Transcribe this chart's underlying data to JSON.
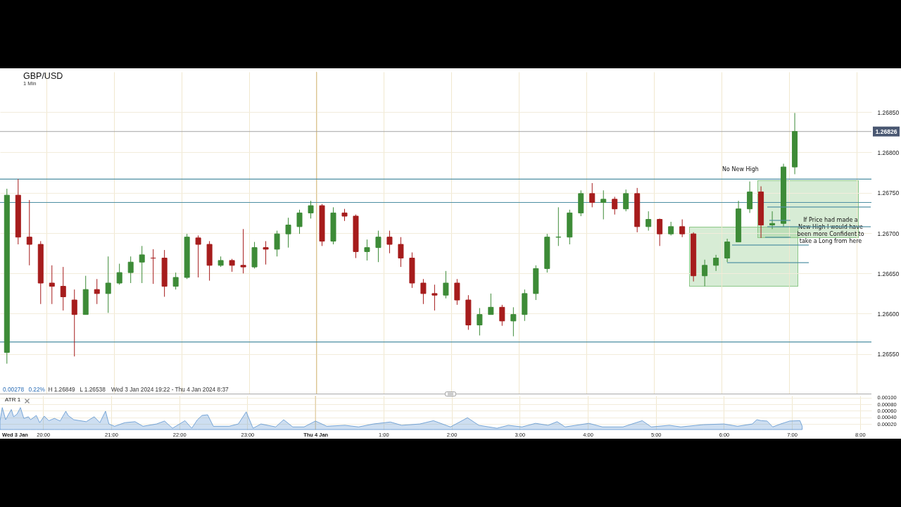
{
  "chart_data": [
    {
      "type": "candlestick",
      "title": "GBP/USD",
      "subtitle": "1 Min",
      "x": [
        "2024-01-03T19:25",
        "2024-01-03T19:35",
        "2024-01-03T19:45",
        "2024-01-03T19:55",
        "2024-01-03T20:05",
        "2024-01-03T20:15",
        "2024-01-03T20:25",
        "2024-01-03T20:35",
        "2024-01-03T20:45",
        "2024-01-03T20:55",
        "2024-01-03T21:05",
        "2024-01-03T21:15",
        "2024-01-03T21:25",
        "2024-01-03T21:35",
        "2024-01-03T21:45",
        "2024-01-03T21:55",
        "2024-01-03T22:05",
        "2024-01-03T22:15",
        "2024-01-03T22:25",
        "2024-01-03T22:35",
        "2024-01-03T22:45",
        "2024-01-03T22:55",
        "2024-01-03T23:05",
        "2024-01-03T23:15",
        "2024-01-03T23:25",
        "2024-01-03T23:35",
        "2024-01-03T23:45",
        "2024-01-03T23:55",
        "2024-01-04T00:05",
        "2024-01-04T00:15",
        "2024-01-04T00:25",
        "2024-01-04T00:35",
        "2024-01-04T00:45",
        "2024-01-04T00:55",
        "2024-01-04T01:05",
        "2024-01-04T01:15",
        "2024-01-04T01:25",
        "2024-01-04T01:35",
        "2024-01-04T01:45",
        "2024-01-04T01:55",
        "2024-01-04T02:05",
        "2024-01-04T02:15",
        "2024-01-04T02:25",
        "2024-01-04T02:35",
        "2024-01-04T02:45",
        "2024-01-04T02:55",
        "2024-01-04T03:05",
        "2024-01-04T03:15",
        "2024-01-04T03:25",
        "2024-01-04T03:35",
        "2024-01-04T03:45",
        "2024-01-04T03:55",
        "2024-01-04T04:05",
        "2024-01-04T04:15",
        "2024-01-04T04:25",
        "2024-01-04T04:35",
        "2024-01-04T04:45",
        "2024-01-04T04:55",
        "2024-01-04T05:05",
        "2024-01-04T05:15",
        "2024-01-04T05:25",
        "2024-01-04T05:35",
        "2024-01-04T05:45",
        "2024-01-04T05:55",
        "2024-01-04T06:05",
        "2024-01-04T06:15",
        "2024-01-04T06:25",
        "2024-01-04T06:35",
        "2024-01-04T06:45",
        "2024-01-04T06:55",
        "2024-01-04T07:05"
      ],
      "ohlc": [
        [
          1.26552,
          1.26755,
          1.26538,
          1.26747
        ],
        [
          1.26747,
          1.26767,
          1.26686,
          1.26695
        ],
        [
          1.26695,
          1.26741,
          1.2666,
          1.26686
        ],
        [
          1.26686,
          1.2669,
          1.26612,
          1.26638
        ],
        [
          1.26638,
          1.2666,
          1.26612,
          1.26634
        ],
        [
          1.26634,
          1.26658,
          1.26604,
          1.26621
        ],
        [
          1.26617,
          1.2663,
          1.26547,
          1.26599
        ],
        [
          1.26599,
          1.26647,
          1.26599,
          1.2663
        ],
        [
          1.2663,
          1.26643,
          1.26612,
          1.26625
        ],
        [
          1.26625,
          1.26671,
          1.26601,
          1.26638
        ],
        [
          1.26638,
          1.26662,
          1.26636,
          1.26651
        ],
        [
          1.26651,
          1.26671,
          1.26638,
          1.26664
        ],
        [
          1.26664,
          1.26684,
          1.26638,
          1.26673
        ],
        [
          1.26669,
          1.2668,
          1.26637,
          1.26669
        ],
        [
          1.26669,
          1.26679,
          1.26621,
          1.26634
        ],
        [
          1.26634,
          1.26651,
          1.2663,
          1.26645
        ],
        [
          1.26645,
          1.26699,
          1.26643,
          1.26695
        ],
        [
          1.26694,
          1.26697,
          1.26645,
          1.26686
        ],
        [
          1.26686,
          1.2669,
          1.26641,
          1.2666
        ],
        [
          1.2666,
          1.26671,
          1.26658,
          1.26666
        ],
        [
          1.26666,
          1.26668,
          1.26652,
          1.2666
        ],
        [
          1.2666,
          1.26705,
          1.2665,
          1.26658
        ],
        [
          1.26658,
          1.26689,
          1.26656,
          1.26682
        ],
        [
          1.26682,
          1.2669,
          1.26661,
          1.2668
        ],
        [
          1.2668,
          1.26703,
          1.26671,
          1.26699
        ],
        [
          1.26699,
          1.26719,
          1.26682,
          1.2671
        ],
        [
          1.26708,
          1.26729,
          1.26699,
          1.26725
        ],
        [
          1.26725,
          1.2674,
          1.26718,
          1.26734
        ],
        [
          1.26734,
          1.26736,
          1.26684,
          1.2669
        ],
        [
          1.2669,
          1.26732,
          1.26686,
          1.26725
        ],
        [
          1.26725,
          1.2673,
          1.26715,
          1.26721
        ],
        [
          1.26721,
          1.26723,
          1.26669,
          1.26677
        ],
        [
          1.26677,
          1.26692,
          1.26666,
          1.26682
        ],
        [
          1.26682,
          1.26703,
          1.26664,
          1.26695
        ],
        [
          1.26695,
          1.26703,
          1.26675,
          1.26686
        ],
        [
          1.26686,
          1.26695,
          1.26658,
          1.26669
        ],
        [
          1.26669,
          1.26676,
          1.26632,
          1.26638
        ],
        [
          1.26638,
          1.26643,
          1.26612,
          1.26625
        ],
        [
          1.26625,
          1.26636,
          1.26604,
          1.26623
        ],
        [
          1.26623,
          1.26653,
          1.26619,
          1.26638
        ],
        [
          1.26638,
          1.26643,
          1.26611,
          1.26617
        ],
        [
          1.26617,
          1.26623,
          1.2658,
          1.26586
        ],
        [
          1.26586,
          1.26607,
          1.26573,
          1.26599
        ],
        [
          1.26599,
          1.26625,
          1.26599,
          1.26608
        ],
        [
          1.26608,
          1.26611,
          1.26585,
          1.26591
        ],
        [
          1.26591,
          1.26608,
          1.26572,
          1.26599
        ],
        [
          1.26599,
          1.2663,
          1.26591,
          1.26625
        ],
        [
          1.26625,
          1.2666,
          1.26617,
          1.26656
        ],
        [
          1.26656,
          1.26699,
          1.26651,
          1.26695
        ],
        [
          1.26695,
          1.26732,
          1.26684,
          1.26695
        ],
        [
          1.26695,
          1.26729,
          1.26686,
          1.26725
        ],
        [
          1.26725,
          1.26753,
          1.26721,
          1.26749
        ],
        [
          1.26749,
          1.26762,
          1.26732,
          1.26738
        ],
        [
          1.26738,
          1.26753,
          1.26717,
          1.26742
        ],
        [
          1.26742,
          1.26745,
          1.26723,
          1.2673
        ],
        [
          1.2673,
          1.26754,
          1.26727,
          1.26749
        ],
        [
          1.26749,
          1.26756,
          1.26701,
          1.26708
        ],
        [
          1.26708,
          1.26727,
          1.26703,
          1.26717
        ],
        [
          1.26717,
          1.26718,
          1.26684,
          1.26699
        ],
        [
          1.26699,
          1.26714,
          1.26697,
          1.26708
        ],
        [
          1.26708,
          1.26717,
          1.26695,
          1.26699
        ],
        [
          1.26699,
          1.26701,
          1.2664,
          1.26647
        ],
        [
          1.26647,
          1.26667,
          1.26634,
          1.2666
        ],
        [
          1.2666,
          1.26673,
          1.26653,
          1.26669
        ],
        [
          1.26669,
          1.26693,
          1.26664,
          1.26689
        ],
        [
          1.26689,
          1.2674,
          1.26689,
          1.2673
        ],
        [
          1.2673,
          1.26764,
          1.26725,
          1.26751
        ],
        [
          1.26751,
          1.26758,
          1.26694,
          1.2671
        ],
        [
          1.2671,
          1.26727,
          1.26705,
          1.26712
        ],
        [
          1.26712,
          1.26786,
          1.26708,
          1.26782
        ],
        [
          1.26782,
          1.26849,
          1.26773,
          1.26826
        ]
      ],
      "colors": [
        "#3d8b37",
        "#a61c1c",
        "#a61c1c",
        "#a61c1c",
        "#a61c1c",
        "#a61c1c",
        "#a61c1c",
        "#3d8b37",
        "#a61c1c",
        "#3d8b37",
        "#3d8b37",
        "#3d8b37",
        "#3d8b37",
        "#a61c1c",
        "#a61c1c",
        "#3d8b37",
        "#3d8b37",
        "#a61c1c",
        "#a61c1c",
        "#3d8b37",
        "#a61c1c",
        "#a61c1c",
        "#3d8b37",
        "#a61c1c",
        "#3d8b37",
        "#3d8b37",
        "#3d8b37",
        "#3d8b37",
        "#a61c1c",
        "#3d8b37",
        "#a61c1c",
        "#a61c1c",
        "#3d8b37",
        "#3d8b37",
        "#a61c1c",
        "#a61c1c",
        "#a61c1c",
        "#a61c1c",
        "#a61c1c",
        "#3d8b37",
        "#a61c1c",
        "#a61c1c",
        "#3d8b37",
        "#3d8b37",
        "#a61c1c",
        "#3d8b37",
        "#3d8b37",
        "#3d8b37",
        "#3d8b37",
        "#3d8b37",
        "#3d8b37",
        "#3d8b37",
        "#a61c1c",
        "#3d8b37",
        "#a61c1c",
        "#3d8b37",
        "#a61c1c",
        "#3d8b37",
        "#a61c1c",
        "#3d8b37",
        "#a61c1c",
        "#a61c1c",
        "#3d8b37",
        "#3d8b37",
        "#3d8b37",
        "#3d8b37",
        "#3d8b37",
        "#a61c1c",
        "#3d8b37",
        "#3d8b37",
        "#3d8b37"
      ],
      "xlim": [
        "2024-01-03T19:22",
        "2024-01-04T08:10"
      ],
      "xticks": [
        {
          "value": "2024-01-03T20:00",
          "label": null
        },
        {
          "value": "2024-01-03T21:00",
          "label": null
        },
        {
          "value": "2024-01-03T22:00",
          "label": null
        },
        {
          "value": "2024-01-03T23:00",
          "label": null
        },
        {
          "value": "2024-01-04T00:00",
          "label": null
        },
        {
          "value": "2024-01-04T01:00",
          "label": null
        },
        {
          "value": "2024-01-04T02:00",
          "label": null
        },
        {
          "value": "2024-01-04T03:00",
          "label": null
        },
        {
          "value": "2024-01-04T04:00",
          "label": null
        },
        {
          "value": "2024-01-04T05:00",
          "label": null
        },
        {
          "value": "2024-01-04T06:00",
          "label": null
        },
        {
          "value": "2024-01-04T07:00",
          "label": null
        },
        {
          "value": "2024-01-04T08:00",
          "label": null
        }
      ],
      "ylim": [
        1.265,
        1.269
      ],
      "yticks": [
        {
          "value": 1.2655,
          "label": "1.26550"
        },
        {
          "value": 1.266,
          "label": "1.26600"
        },
        {
          "value": 1.2665,
          "label": "1.26650"
        },
        {
          "value": 1.267,
          "label": "1.26700"
        },
        {
          "value": 1.2675,
          "label": "1.26750"
        },
        {
          "value": 1.268,
          "label": "1.26800"
        },
        {
          "value": 1.2685,
          "label": "1.26850"
        }
      ],
      "grid": true,
      "tick_labels": "y",
      "ref_lines": [
        {
          "axis": "y",
          "value": 1.26767,
          "color": "#4e8fa3"
        },
        {
          "axis": "y",
          "value": 1.26738,
          "color": "#4e8fa3"
        },
        {
          "axis": "y",
          "value": 1.26565,
          "color": "#4e8fa3"
        },
        {
          "axis": "y",
          "value": 1.26826,
          "label": "1.26826",
          "color": "#a3a3a3"
        },
        {
          "axis": "x",
          "value": "2024-01-04T00:00",
          "color": "#dcc494"
        }
      ],
      "annotations": [
        "No New High",
        "If Price had made a New High I would have been more Confident to take a Long from here",
        "0.00278",
        "0.22%",
        "H 1.26849",
        "L 1.26538",
        "Wed 3 Jan 2024 19:22 - Thu 4 Jan 2024 8:37"
      ]
    },
    {
      "type": "area",
      "title": "ATR 1",
      "x": [
        "2024-01-03T19:22",
        "2024-01-03T19:24",
        "2024-01-03T19:27",
        "2024-01-03T19:29",
        "2024-01-03T19:32",
        "2024-01-03T19:34",
        "2024-01-03T19:37",
        "2024-01-03T19:40",
        "2024-01-03T19:43",
        "2024-01-03T19:47",
        "2024-01-03T19:49",
        "2024-01-03T19:54",
        "2024-01-03T19:57",
        "2024-01-03T20:01",
        "2024-01-03T20:05",
        "2024-01-03T20:10",
        "2024-01-03T20:15",
        "2024-01-03T20:20",
        "2024-01-03T20:22",
        "2024-01-03T20:27",
        "2024-01-03T20:38",
        "2024-01-03T20:45",
        "2024-01-03T20:50",
        "2024-01-03T20:55",
        "2024-01-03T20:58",
        "2024-01-03T21:03",
        "2024-01-03T21:12",
        "2024-01-03T21:21",
        "2024-01-03T21:28",
        "2024-01-03T21:40",
        "2024-01-03T21:47",
        "2024-01-03T21:54",
        "2024-01-03T22:05",
        "2024-01-03T22:11",
        "2024-01-03T22:16",
        "2024-01-03T22:20",
        "2024-01-03T22:25",
        "2024-01-03T22:30",
        "2024-01-03T22:44",
        "2024-01-03T22:52",
        "2024-01-03T22:59",
        "2024-01-03T23:05",
        "2024-01-03T23:12",
        "2024-01-03T23:25",
        "2024-01-03T23:32",
        "2024-01-03T23:40",
        "2024-01-03T23:50",
        "2024-01-04T00:00",
        "2024-01-04T00:10",
        "2024-01-04T00:26",
        "2024-01-04T00:38",
        "2024-01-04T00:51",
        "2024-01-04T01:06",
        "2024-01-04T01:16",
        "2024-01-04T01:32",
        "2024-01-04T01:44",
        "2024-01-04T01:59",
        "2024-01-04T02:14",
        "2024-01-04T02:24",
        "2024-01-04T02:40",
        "2024-01-04T02:50",
        "2024-01-04T03:02",
        "2024-01-04T03:14",
        "2024-01-04T03:25",
        "2024-01-04T03:33",
        "2024-01-04T03:40",
        "2024-01-04T04:01",
        "2024-01-04T04:13",
        "2024-01-04T04:31",
        "2024-01-04T04:48",
        "2024-01-04T04:56",
        "2024-01-04T05:12",
        "2024-01-04T05:22",
        "2024-01-04T05:42",
        "2024-01-04T06:00",
        "2024-01-04T06:12",
        "2024-01-04T06:25",
        "2024-01-04T06:29",
        "2024-01-04T06:33",
        "2024-01-04T06:38",
        "2024-01-04T06:43",
        "2024-01-04T06:50",
        "2024-01-04T06:58",
        "2024-01-04T07:07",
        "2024-01-04T07:09"
      ],
      "values": [
        0.00029,
        0.0007,
        0.00033,
        0.00046,
        0.00064,
        0.00042,
        0.0005,
        0.0007,
        0.00037,
        0.00042,
        0.00033,
        0.00046,
        0.00024,
        0.00044,
        0.0003,
        0.00037,
        0.00029,
        0.00059,
        0.00046,
        0.00033,
        0.00027,
        0.00042,
        0.00024,
        0.00059,
        0.0002,
        0.00013,
        0.00024,
        0.00027,
        0.00013,
        0.0002,
        0.00029,
        7e-05,
        0.0003,
        7e-05,
        0.00033,
        0.00046,
        0.00048,
        0.00013,
        0.00013,
        0.0002,
        0.00057,
        7e-05,
        0.0002,
        0.00011,
        0.00033,
        0.00011,
        0.00011,
        0.00029,
        0.00013,
        0.00016,
        0.00011,
        0.0002,
        0.00026,
        0.00016,
        0.0002,
        0.0003,
        0.00011,
        0.00039,
        0.00016,
        7e-05,
        0.00016,
        0.00011,
        0.00022,
        0.00016,
        0.00027,
        0.00011,
        0.00022,
        0.00011,
        0.00011,
        0.0003,
        0.00011,
        0.00016,
        0.00011,
        0.00018,
        0.0002,
        0.00013,
        0.0002,
        0.00033,
        0.0003,
        0.00029,
        0.00011,
        0.0002,
        0.00029,
        0.0003,
        0.00013
      ],
      "color": "#5b93cf",
      "xlim": [
        "2024-01-03T19:22",
        "2024-01-04T08:10"
      ],
      "xticks": [
        {
          "value": "2024-01-03T19:35",
          "label": "Wed 3 Jan"
        },
        {
          "value": "2024-01-03T20:00",
          "label": "20:00"
        },
        {
          "value": "2024-01-03T21:00",
          "label": "21:00"
        },
        {
          "value": "2024-01-03T22:00",
          "label": "22:00"
        },
        {
          "value": "2024-01-03T23:00",
          "label": "23:00"
        },
        {
          "value": "2024-01-04T00:00",
          "label": "Thu 4 Jan"
        },
        {
          "value": "2024-01-04T01:00",
          "label": "1:00"
        },
        {
          "value": "2024-01-04T02:00",
          "label": "2:00"
        },
        {
          "value": "2024-01-04T03:00",
          "label": "3:00"
        },
        {
          "value": "2024-01-04T04:00",
          "label": "4:00"
        },
        {
          "value": "2024-01-04T05:00",
          "label": "5:00"
        },
        {
          "value": "2024-01-04T06:00",
          "label": "6:00"
        },
        {
          "value": "2024-01-04T07:00",
          "label": "7:00"
        },
        {
          "value": "2024-01-04T08:00",
          "label": "8:00"
        }
      ],
      "ylim": [
        3e-05,
        0.00106
      ],
      "yticks": [
        {
          "value": 0.0002,
          "label": "0.00020"
        },
        {
          "value": 0.0004,
          "label": "0.00040"
        },
        {
          "value": 0.0006,
          "label": "0.00060"
        },
        {
          "value": 0.0008,
          "label": "0.00080"
        },
        {
          "value": 0.001,
          "label": "0.00100"
        }
      ],
      "grid": true,
      "ref_lines": [
        {
          "axis": "x",
          "value": "2024-01-04T00:00",
          "color": "#dcc494"
        }
      ]
    }
  ]
}
